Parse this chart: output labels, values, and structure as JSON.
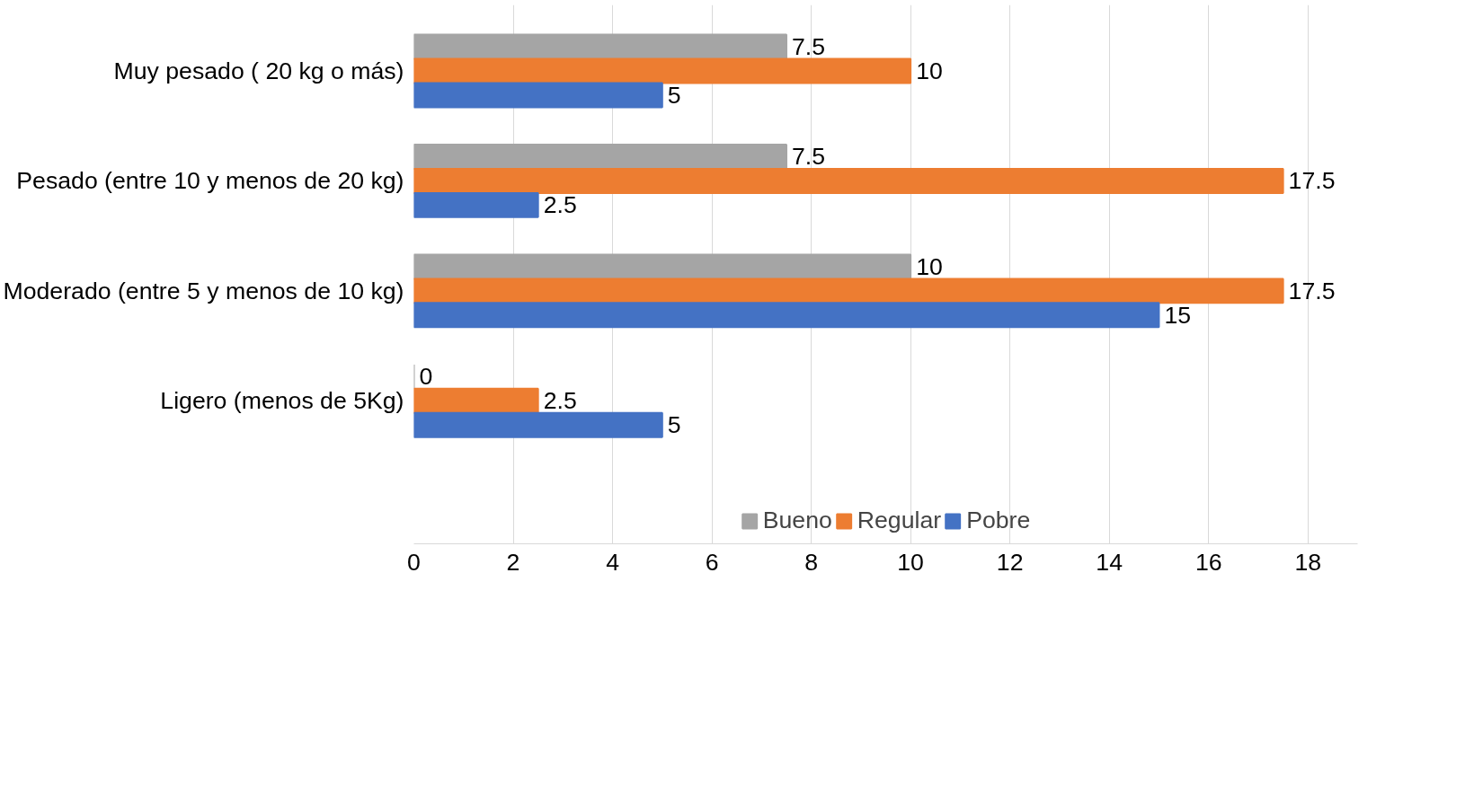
{
  "chart_data": {
    "type": "bar",
    "orientation": "horizontal",
    "categories": [
      "Muy pesado ( 20 kg o más)",
      "Pesado (entre 10 y menos de 20 kg)",
      "Moderado (entre 5 y menos de 10 kg)",
      "Ligero (menos de 5Kg)"
    ],
    "series": [
      {
        "name": "Bueno",
        "color": "#a5a5a5",
        "values": [
          7.5,
          7.5,
          10,
          0
        ]
      },
      {
        "name": "Regular",
        "color": "#ed7d31",
        "values": [
          10,
          17.5,
          17.5,
          2.5
        ]
      },
      {
        "name": "Pobre",
        "color": "#4472c4",
        "values": [
          5,
          2.5,
          15,
          5
        ]
      }
    ],
    "xlim": [
      0,
      19
    ],
    "xticks": [
      0,
      2,
      4,
      6,
      8,
      10,
      12,
      14,
      16,
      18
    ],
    "grid": "x",
    "legend": "bottom",
    "data_labels": true
  }
}
